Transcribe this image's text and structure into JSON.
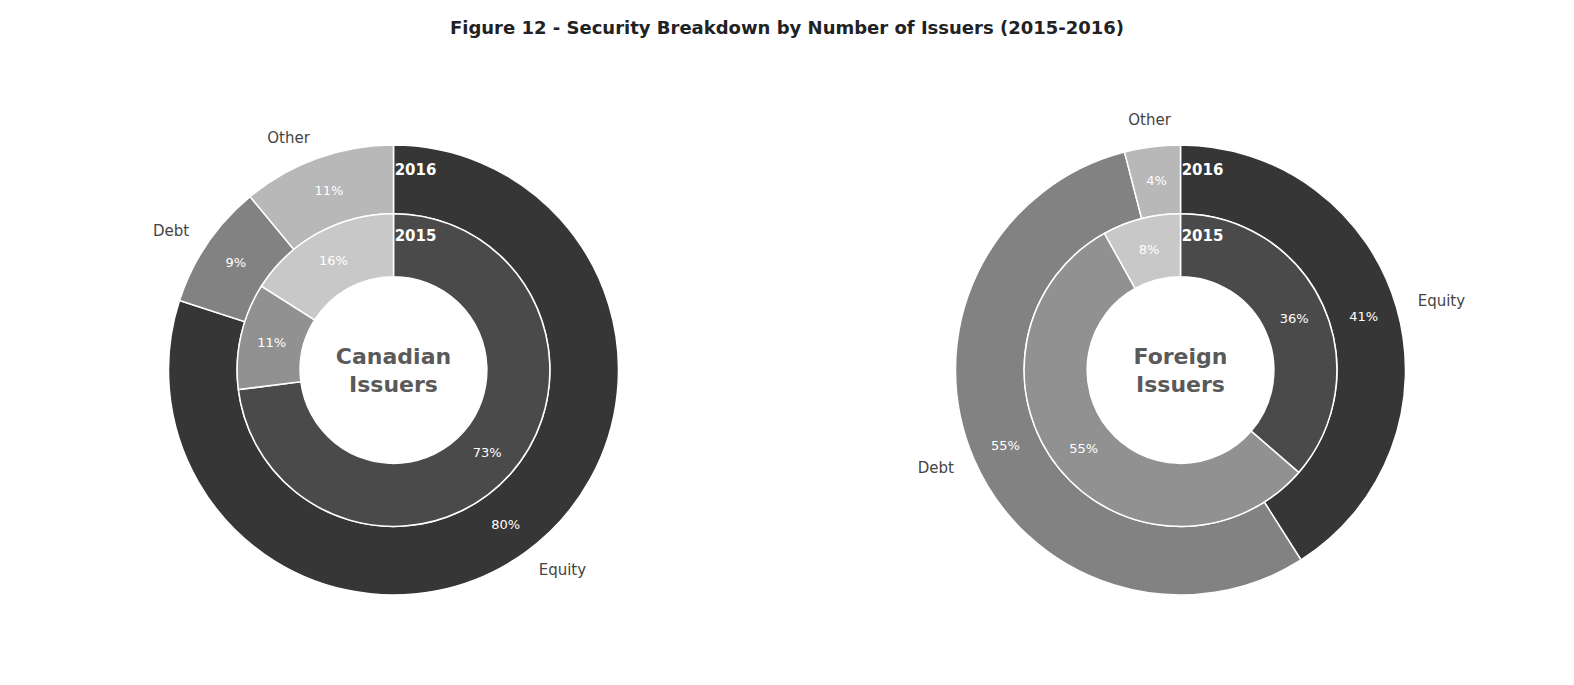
{
  "chart_data": [
    {
      "type": "pie",
      "title": "Figure 12 - Security Breakdown by Number of Issuers (2015-2016)",
      "annotations": [
        "Canadian\nIssuers"
      ],
      "categories": [
        "Equity",
        "Debt",
        "Other"
      ],
      "data_labels": true,
      "series": [
        {
          "name": "2016",
          "values": [
            80,
            9,
            11
          ],
          "value_labels": [
            "80%",
            "9%",
            "11%"
          ],
          "colors": [
            "#363636",
            "#828282",
            "#b8b8b8"
          ]
        },
        {
          "name": "2015",
          "values": [
            73,
            11,
            16
          ],
          "value_labels": [
            "73%",
            "11%",
            "16%"
          ],
          "colors": [
            "#4a4a4a",
            "#919191",
            "#c8c8c8"
          ]
        }
      ]
    },
    {
      "type": "pie",
      "annotations": [
        "Foreign\nIssuers"
      ],
      "categories": [
        "Equity",
        "Debt",
        "Other"
      ],
      "data_labels": true,
      "series": [
        {
          "name": "2016",
          "values": [
            41,
            55,
            4
          ],
          "value_labels": [
            "41%",
            "55%",
            "4%"
          ],
          "colors": [
            "#363636",
            "#828282",
            "#b8b8b8"
          ]
        },
        {
          "name": "2015",
          "values": [
            36,
            55,
            8
          ],
          "value_labels": [
            "36%",
            "55%",
            "8%"
          ],
          "colors": [
            "#4a4a4a",
            "#919191",
            "#c8c8c8"
          ]
        }
      ]
    }
  ]
}
